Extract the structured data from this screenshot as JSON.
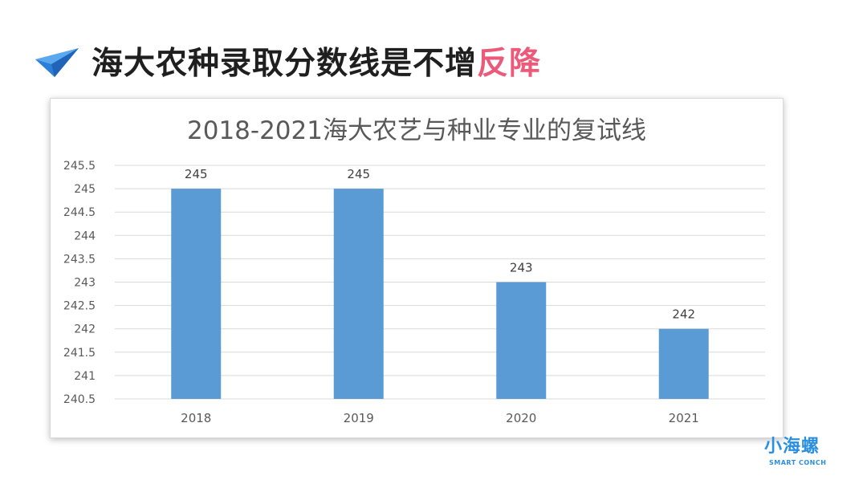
{
  "slide": {
    "heading_main": "海大农种录取分数线是不增",
    "heading_accent": "反降",
    "heading_icon": "paper-plane-icon",
    "accent_color": "#ec5a7a",
    "logo_text": "小海螺",
    "logo_sub": "SMART CONCH"
  },
  "chart_data": {
    "type": "bar",
    "title": "2018-2021海大农艺与种业专业的复试线",
    "categories": [
      "2018",
      "2019",
      "2020",
      "2021"
    ],
    "values": [
      245,
      245,
      243,
      242
    ],
    "data_labels": [
      "245",
      "245",
      "243",
      "242"
    ],
    "ylim": [
      240.5,
      245.5
    ],
    "yticks": [
      "240.5",
      "241",
      "241.5",
      "242",
      "242.5",
      "243",
      "243.5",
      "244",
      "244.5",
      "245",
      "245.5"
    ],
    "xlabel": "",
    "ylabel": "",
    "grid": true,
    "legend": "none",
    "bar_color": "#5b9bd5"
  }
}
